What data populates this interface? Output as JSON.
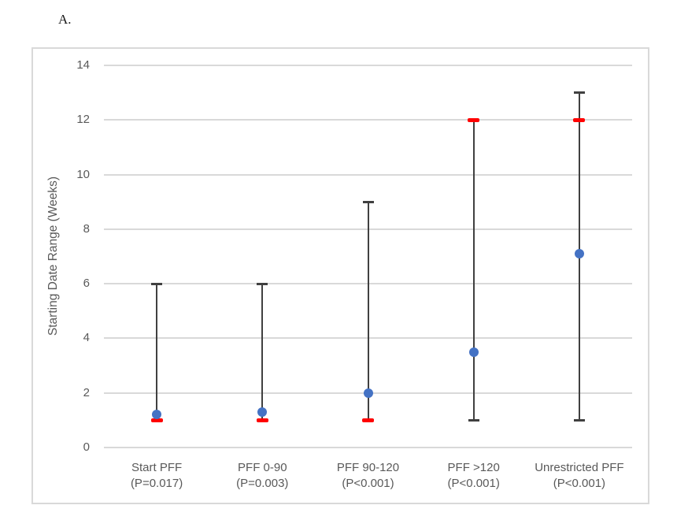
{
  "panel_label": "A.",
  "chart_data": {
    "type": "scatter",
    "title": "",
    "xlabel": "",
    "ylabel": "Starting Date Range (Weeks)",
    "ylim": [
      0,
      14
    ],
    "yticks": [
      0,
      2,
      4,
      6,
      8,
      10,
      12,
      14
    ],
    "grid": true,
    "legend": "none",
    "categories": [
      {
        "label": "Start PFF",
        "sublabel": "(P=0.017)",
        "mean": 1.2,
        "median": 1,
        "whisker_low": 1,
        "whisker_high": 6
      },
      {
        "label": "PFF 0-90",
        "sublabel": "(P=0.003)",
        "mean": 1.3,
        "median": 1,
        "whisker_low": 1,
        "whisker_high": 6
      },
      {
        "label": "PFF 90-120",
        "sublabel": "(P<0.001)",
        "mean": 2.0,
        "median": 1,
        "whisker_low": 1,
        "whisker_high": 9
      },
      {
        "label": "PFF >120",
        "sublabel": "(P<0.001)",
        "mean": 3.5,
        "median": 12,
        "whisker_low": 1,
        "whisker_high": 12
      },
      {
        "label": "Unrestricted PFF",
        "sublabel": "(P<0.001)",
        "mean": 7.1,
        "median": 12,
        "whisker_low": 1,
        "whisker_high": 13
      }
    ],
    "series": [
      {
        "name": "mean",
        "marker": "circle",
        "color": "#4472c4"
      },
      {
        "name": "median",
        "marker": "dash",
        "color": "#ff0000"
      }
    ],
    "colors": {
      "whisker": "#404040",
      "gridline": "#d9d9d9",
      "axis_text": "#595959",
      "frame_border": "#d9d9d9",
      "background": "#ffffff"
    }
  }
}
